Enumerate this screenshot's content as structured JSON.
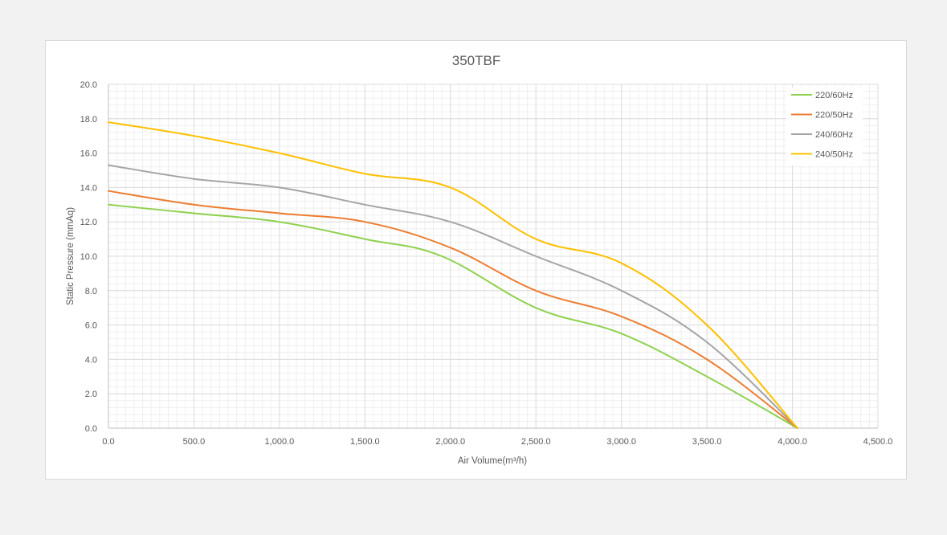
{
  "chart_data": {
    "type": "line",
    "title": "350TBF",
    "xlabel": "Air Volume(m³/h)",
    "ylabel": "Static Pressure (mmAq)",
    "xlim": [
      0,
      4500
    ],
    "ylim": [
      0,
      20
    ],
    "x_ticks": [
      "0.0",
      "500.0",
      "1,000.0",
      "1,500.0",
      "2,000.0",
      "2,500.0",
      "3,000.0",
      "3,500.0",
      "4,000.0",
      "4,500.0"
    ],
    "y_ticks": [
      "0.0",
      "2.0",
      "4.0",
      "6.0",
      "8.0",
      "10.0",
      "12.0",
      "14.0",
      "16.0",
      "18.0",
      "20.0"
    ],
    "grid": true,
    "minor_grid": true,
    "legend_position": "top-right",
    "series": [
      {
        "name": "220/60Hz",
        "color": "#8fd14f",
        "x": [
          0,
          500,
          1000,
          1500,
          1950,
          2500,
          3000,
          3500,
          4030
        ],
        "y": [
          13.0,
          12.5,
          12.0,
          11.0,
          10.0,
          7.0,
          5.5,
          3.0,
          0
        ]
      },
      {
        "name": "220/50Hz",
        "color": "#ed7d31",
        "x": [
          0,
          500,
          1000,
          1500,
          2000,
          2500,
          3000,
          3500,
          4030
        ],
        "y": [
          13.8,
          13.0,
          12.5,
          12.0,
          10.5,
          8.0,
          6.5,
          4.0,
          0
        ]
      },
      {
        "name": "240/60Hz",
        "color": "#a5a5a5",
        "x": [
          0,
          500,
          1000,
          1500,
          2000,
          2500,
          3000,
          3500,
          4030
        ],
        "y": [
          15.3,
          14.5,
          14.0,
          13.0,
          12.0,
          10.0,
          8.0,
          5.0,
          0
        ]
      },
      {
        "name": "240/50Hz",
        "color": "#ffc000",
        "x": [
          0,
          500,
          1000,
          1500,
          2000,
          2500,
          3000,
          3500,
          4030
        ],
        "y": [
          17.8,
          17.0,
          16.0,
          14.8,
          14.0,
          11.0,
          9.6,
          6.0,
          0
        ]
      }
    ]
  }
}
